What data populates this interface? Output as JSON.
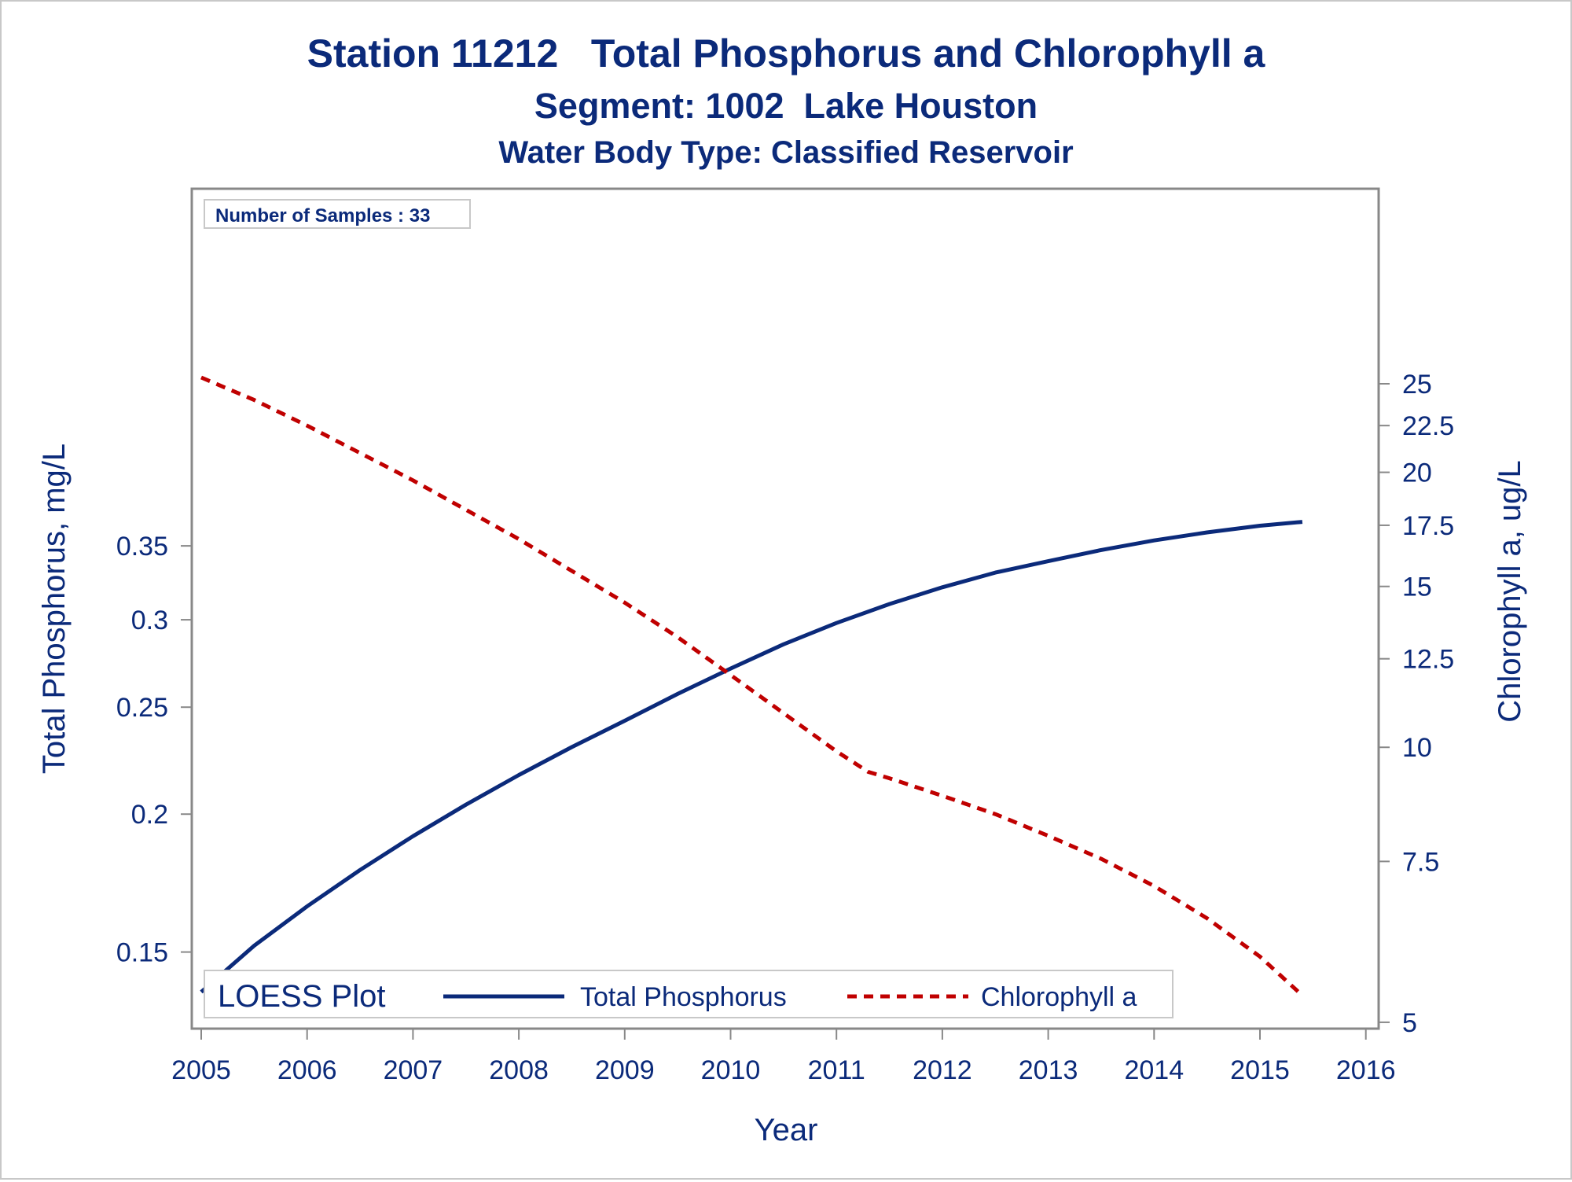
{
  "chart_data": {
    "type": "line",
    "title": "Station 11212   Total Phosphorus and Chlorophyll a",
    "subtitle": "Segment: 1002  Lake Houston",
    "subtitle2": "Water Body Type: Classified Reservoir",
    "xlabel": "Year",
    "ylabel_left": "Total Phosphorus, mg/L",
    "ylabel_right": "Chlorophyll a, ug/L",
    "x_ticks": [
      "2005",
      "2006",
      "2007",
      "2008",
      "2009",
      "2010",
      "2011",
      "2012",
      "2013",
      "2014",
      "2015",
      "2016"
    ],
    "y_left_ticks": [
      "0.15",
      "0.2",
      "0.25",
      "0.3",
      "0.35"
    ],
    "y_right_ticks": [
      "5",
      "7.5",
      "10",
      "12.5",
      "15",
      "17.5",
      "20",
      "22.5",
      "25"
    ],
    "xlim": [
      2005,
      2016
    ],
    "y_left_scale": "log",
    "y_right_scale": "log",
    "inset_text": "Number of Samples : 33",
    "legend": {
      "title": "LOESS Plot",
      "placement": "bottom-left inside",
      "items": [
        "Total Phosphorus",
        "Chlorophyll a"
      ]
    },
    "series": [
      {
        "name": "Total Phosphorus",
        "axis": "left",
        "style": "solid",
        "color": "#0b2a7a",
        "x": [
          2005.0,
          2005.5,
          2006.0,
          2006.5,
          2007.0,
          2007.5,
          2008.0,
          2008.5,
          2009.0,
          2009.5,
          2010.0,
          2010.5,
          2011.0,
          2011.5,
          2012.0,
          2012.5,
          2013.0,
          2013.5,
          2014.0,
          2014.5,
          2015.0,
          2015.4
        ],
        "y": [
          0.138,
          0.152,
          0.165,
          0.178,
          0.191,
          0.204,
          0.217,
          0.23,
          0.243,
          0.257,
          0.271,
          0.285,
          0.298,
          0.31,
          0.321,
          0.331,
          0.339,
          0.347,
          0.354,
          0.36,
          0.365,
          0.368
        ]
      },
      {
        "name": "Chlorophyll a",
        "axis": "right",
        "style": "dashed",
        "color": "#c00000",
        "x": [
          2005.0,
          2005.5,
          2006.0,
          2006.5,
          2007.0,
          2007.5,
          2008.0,
          2008.5,
          2009.0,
          2009.5,
          2010.0,
          2010.5,
          2011.0,
          2011.3,
          2011.5,
          2012.0,
          2012.5,
          2013.0,
          2013.5,
          2014.0,
          2014.5,
          2015.0,
          2015.4
        ],
        "y": [
          25.4,
          24.0,
          22.5,
          21.0,
          19.6,
          18.2,
          16.9,
          15.6,
          14.4,
          13.2,
          12.0,
          10.9,
          9.9,
          9.4,
          9.25,
          8.85,
          8.45,
          8.0,
          7.55,
          7.05,
          6.5,
          5.9,
          5.35
        ]
      }
    ],
    "colors": {
      "text": "#0b2a7a",
      "frame": "#888888",
      "series1": "#0b2a7a",
      "series2": "#c00000"
    },
    "grid": false
  }
}
